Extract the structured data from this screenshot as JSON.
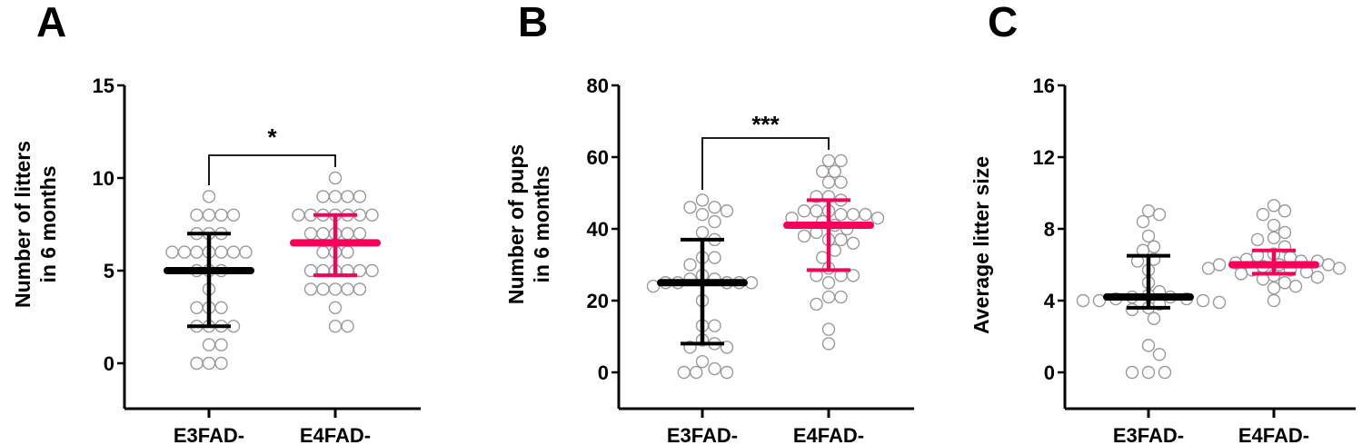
{
  "colors": {
    "E3": "#000000",
    "E4": "#f5005a",
    "point_stroke": "#9a9a9a",
    "axis": "#000000"
  },
  "chart_data": [
    {
      "panel": "A",
      "type": "scatter",
      "title": "",
      "xlabel": "",
      "ylabel": "Number of litters in 6 months",
      "ylabel_lines": [
        "Number of litters",
        "in 6 months"
      ],
      "categories": [
        "E3FAD-",
        "E4FAD-"
      ],
      "ylim": [
        -2.5,
        15
      ],
      "yticks": [
        0,
        5,
        10,
        15
      ],
      "grid": false,
      "significance": {
        "label": "*",
        "between": [
          "E3FAD-",
          "E4FAD-"
        ]
      },
      "series": [
        {
          "name": "E3FAD-",
          "mean": 5,
          "error_low": 2,
          "error_high": 7,
          "values": [
            9,
            8,
            8,
            8,
            8,
            7,
            7,
            7,
            6,
            6,
            6,
            6,
            6,
            6,
            6,
            5,
            5,
            5,
            4,
            3,
            3,
            3,
            2,
            2,
            2,
            2,
            1,
            1,
            0,
            0,
            0
          ]
        },
        {
          "name": "E4FAD-",
          "mean": 6.5,
          "error_low": 4.75,
          "error_high": 8,
          "values": [
            10,
            9,
            9,
            9,
            9,
            8,
            8,
            8,
            8,
            8,
            8,
            8,
            7,
            7,
            7,
            7,
            7,
            6,
            6,
            6,
            5,
            5,
            5,
            5,
            5,
            5,
            4,
            4,
            4,
            4,
            4,
            3,
            2,
            2
          ]
        }
      ]
    },
    {
      "panel": "B",
      "type": "scatter",
      "title": "",
      "xlabel": "",
      "ylabel": "Number of pups in 6 months",
      "ylabel_lines": [
        "Number of pups",
        "in 6 months"
      ],
      "categories": [
        "E3FAD-",
        "E4FAD-"
      ],
      "ylim": [
        -10,
        80
      ],
      "yticks": [
        0,
        20,
        40,
        60,
        80
      ],
      "grid": false,
      "significance": {
        "label": "***",
        "between": [
          "E3FAD-",
          "E4FAD-"
        ]
      },
      "series": [
        {
          "name": "E3FAD-",
          "mean": 25,
          "error_low": 8,
          "error_high": 37,
          "values": [
            48,
            46,
            46,
            45,
            44,
            42,
            39,
            37,
            32,
            32,
            30,
            27,
            26,
            26,
            25,
            25,
            25,
            25,
            25,
            24,
            20,
            13,
            13,
            9,
            8,
            7,
            7,
            3,
            1,
            0,
            0,
            0
          ]
        },
        {
          "name": "E4FAD-",
          "mean": 41,
          "error_low": 28.5,
          "error_high": 48,
          "values": [
            59,
            59,
            56,
            56,
            53,
            53,
            49,
            48,
            49,
            45,
            44,
            45,
            44,
            45,
            44,
            43,
            43,
            42,
            41,
            40,
            39,
            37,
            37,
            38,
            36,
            34,
            32,
            29,
            27,
            27,
            27,
            25,
            21,
            21,
            19,
            12,
            8
          ]
        }
      ]
    },
    {
      "panel": "C",
      "type": "scatter",
      "title": "",
      "xlabel": "",
      "ylabel": "Average litter size",
      "ylabel_lines": [
        "Average litter size"
      ],
      "categories": [
        "E3FAD-",
        "E4FAD-"
      ],
      "ylim": [
        -2,
        16
      ],
      "yticks": [
        0,
        4,
        8,
        12,
        16
      ],
      "grid": false,
      "significance": null,
      "series": [
        {
          "name": "E3FAD-",
          "mean": 4.2,
          "error_low": 3.6,
          "error_high": 6.5,
          "values": [
            9.0,
            8.8,
            8.4,
            7.6,
            7.0,
            6.8,
            6.3,
            6.2,
            5.7,
            5.0,
            4.5,
            4.3,
            4.2,
            4.2,
            4.1,
            4.1,
            4.0,
            4.0,
            4.0,
            3.9,
            3.8,
            3.6,
            3.5,
            3.0,
            1.5,
            1.0,
            0,
            0,
            0
          ]
        },
        {
          "name": "E4FAD-",
          "mean": 6.0,
          "error_low": 5.5,
          "error_high": 6.8,
          "values": [
            9.3,
            9.0,
            8.8,
            8.2,
            7.8,
            7.5,
            7.4,
            7.0,
            6.6,
            6.5,
            6.4,
            6.3,
            6.2,
            6.2,
            6.1,
            6.0,
            6.0,
            6.0,
            5.9,
            5.8,
            5.8,
            5.7,
            5.7,
            5.6,
            5.5,
            5.4,
            5.3,
            5.2,
            5.0,
            4.8,
            4.7,
            4.0
          ]
        }
      ]
    }
  ],
  "panels": [
    {
      "letter": "A",
      "ylabel_lines": [
        "Number of litters",
        "in 6 months"
      ],
      "yticks": [
        "0",
        "5",
        "10",
        "15"
      ],
      "categories": [
        "E3FAD-",
        "E4FAD-"
      ],
      "sig": "*"
    },
    {
      "letter": "B",
      "ylabel_lines": [
        "Number of pups",
        "in 6 months"
      ],
      "yticks": [
        "0",
        "20",
        "40",
        "60",
        "80"
      ],
      "categories": [
        "E3FAD-",
        "E4FAD-"
      ],
      "sig": "***"
    },
    {
      "letter": "C",
      "ylabel_lines": [
        "Average litter size"
      ],
      "yticks": [
        "0",
        "4",
        "8",
        "12",
        "16"
      ],
      "categories": [
        "E3FAD-",
        "E4FAD-"
      ],
      "sig": ""
    }
  ]
}
